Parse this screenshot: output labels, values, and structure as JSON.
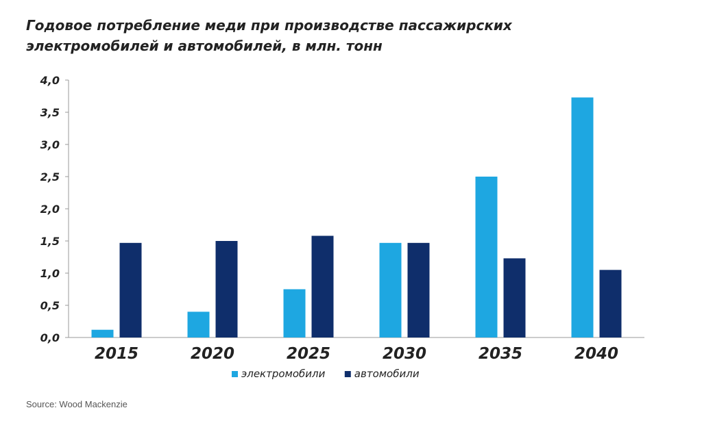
{
  "title_lines": [
    "Годовое потребление меди при производстве пассажирских",
    "электромобилей и автомобилей, в млн. тонн"
  ],
  "source": "Source: Wood Mackenzie",
  "chart_data": {
    "type": "bar",
    "categories": [
      "2015",
      "2020",
      "2025",
      "2030",
      "2035",
      "2040"
    ],
    "series": [
      {
        "name": "электромобили",
        "color": "#1ea7e1",
        "values": [
          0.12,
          0.4,
          0.75,
          1.47,
          2.5,
          3.73
        ]
      },
      {
        "name": "автомобили",
        "color": "#0f2e6b",
        "values": [
          1.47,
          1.5,
          1.58,
          1.47,
          1.23,
          1.05
        ]
      }
    ],
    "ylim": [
      0,
      4
    ],
    "yticks": [
      "0,0",
      "0,5",
      "1,0",
      "1,5",
      "2,0",
      "2,5",
      "3,0",
      "3,5",
      "4,0"
    ],
    "ytick_values": [
      0,
      0.5,
      1,
      1.5,
      2,
      2.5,
      3,
      3.5,
      4
    ],
    "xlabel": "",
    "ylabel": "",
    "grid": false,
    "legend_position": "bottom-center"
  }
}
